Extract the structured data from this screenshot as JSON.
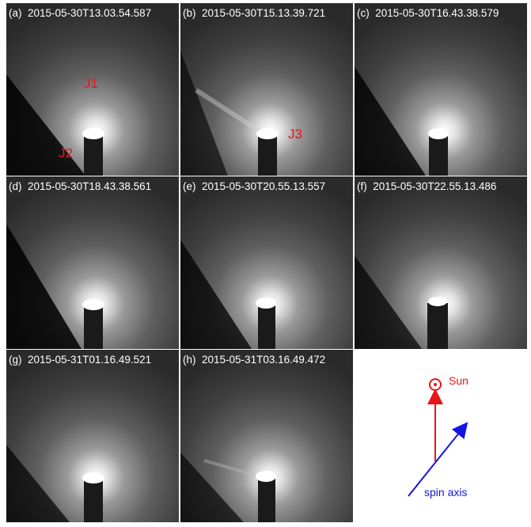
{
  "panels": [
    {
      "tag": "(a)",
      "time": "2015-05-30T13.03.54.587",
      "jets": [
        "J1",
        "J2"
      ]
    },
    {
      "tag": "(b)",
      "time": "2015-05-30T15.13.39.721",
      "jets": [
        "J3"
      ]
    },
    {
      "tag": "(c)",
      "time": "2015-05-30T16.43.38.579",
      "jets": []
    },
    {
      "tag": "(d)",
      "time": "2015-05-30T18.43.38.561",
      "jets": []
    },
    {
      "tag": "(e)",
      "time": "2015-05-30T20.55.13.557",
      "jets": []
    },
    {
      "tag": "(f)",
      "time": "2015-05-30T22.55.13.486",
      "jets": []
    },
    {
      "tag": "(g)",
      "time": "2015-05-31T01.16.49.521",
      "jets": []
    },
    {
      "tag": "(h)",
      "time": "2015-05-31T03.16.49.472",
      "jets": []
    }
  ],
  "legend": {
    "sun_label": "Sun",
    "spin_label": "spin axis",
    "sun_color": "#e8141a",
    "spin_color": "#1414e6"
  }
}
